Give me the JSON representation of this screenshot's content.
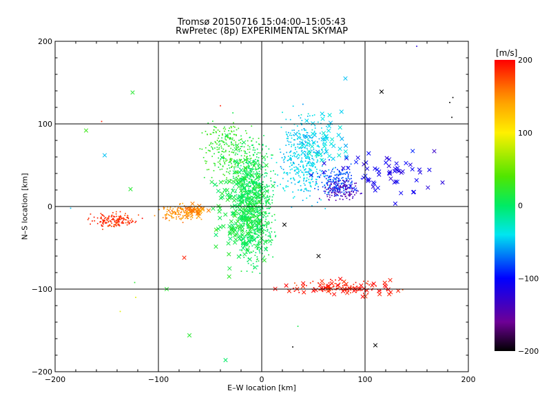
{
  "chart_data": {
    "type": "scatter",
    "title": "Tromsø 20150716 15:04:00–15:05:43",
    "subtitle": "RwPretec (8p) EXPERIMENTAL SKYMAP",
    "xlabel": "E–W location [km]",
    "ylabel": "N–S location [km]",
    "xlim": [
      -200,
      200
    ],
    "ylim": [
      -200,
      200
    ],
    "x_ticks": [
      "−200",
      "−100",
      "0",
      "100",
      "200"
    ],
    "y_ticks": [
      "−200",
      "−100",
      "0",
      "100",
      "200"
    ],
    "grid": true,
    "grid_values": [
      -100,
      0,
      100
    ],
    "colorbar": {
      "label": "[m/s]",
      "range": [
        -200,
        200
      ],
      "ticks": [
        "200",
        "100",
        "0",
        "−100",
        "−200"
      ],
      "tick_values": [
        200,
        100,
        0,
        -100,
        -200
      ],
      "colormap": "rainbow (black → purple → blue → cyan → green → yellow → orange → red)"
    },
    "markers": {
      "dots": "small points",
      "crosses": "× markers"
    },
    "clusters": [
      {
        "name": "central green column",
        "x_range": [
          -30,
          15
        ],
        "y_range": [
          -85,
          90
        ],
        "velocity": 5,
        "count": 950,
        "marker": "dot"
      },
      {
        "name": "north green spread",
        "x_range": [
          -65,
          0
        ],
        "y_range": [
          20,
          115
        ],
        "velocity": 25,
        "count": 260,
        "marker": "dot"
      },
      {
        "name": "north-east cyan spread",
        "x_range": [
          10,
          70
        ],
        "y_range": [
          -5,
          125
        ],
        "velocity": -45,
        "count": 420,
        "marker": "dot"
      },
      {
        "name": "east cyan-blue",
        "x_range": [
          50,
          95
        ],
        "y_range": [
          5,
          55
        ],
        "velocity": -80,
        "count": 180,
        "marker": "dot"
      },
      {
        "name": "east dark-blue band",
        "x_range": [
          55,
          100
        ],
        "y_range": [
          5,
          35
        ],
        "velocity": -140,
        "count": 120,
        "marker": "dot"
      },
      {
        "name": "west red band",
        "x_range": [
          -172,
          -115
        ],
        "y_range": [
          -30,
          -5
        ],
        "velocity": 185,
        "count": 160,
        "marker": "dot"
      },
      {
        "name": "west orange band",
        "x_range": [
          -105,
          -55
        ],
        "y_range": [
          -20,
          5
        ],
        "velocity": 150,
        "count": 120,
        "marker": "dot"
      },
      {
        "name": "south-east red band",
        "x_range": [
          10,
          145
        ],
        "y_range": [
          -110,
          -85
        ],
        "velocity": 190,
        "count": 70,
        "marker": "dot"
      },
      {
        "name": "green crosses",
        "x_range": [
          -50,
          15
        ],
        "y_range": [
          -95,
          95
        ],
        "velocity": 10,
        "count": 220,
        "marker": "cross"
      },
      {
        "name": "south-east red crosses",
        "x_range": [
          10,
          145
        ],
        "y_range": [
          -110,
          -85
        ],
        "velocity": 195,
        "count": 55,
        "marker": "cross"
      },
      {
        "name": "east blue crosses",
        "x_range": [
          50,
          180
        ],
        "y_range": [
          5,
          70
        ],
        "velocity": -110,
        "count": 60,
        "marker": "cross"
      },
      {
        "name": "west orange crosses",
        "x_range": [
          -80,
          -50
        ],
        "y_range": [
          -15,
          5
        ],
        "velocity": 155,
        "count": 30,
        "marker": "cross"
      },
      {
        "name": "north-east cyan crosses",
        "x_range": [
          20,
          90
        ],
        "y_range": [
          40,
          130
        ],
        "velocity": -40,
        "count": 50,
        "marker": "cross"
      }
    ],
    "outlier_crosses": [
      {
        "x": -125,
        "y": 138,
        "velocity": 20
      },
      {
        "x": -170,
        "y": 92,
        "velocity": 30
      },
      {
        "x": -152,
        "y": 62,
        "velocity": -50
      },
      {
        "x": -127,
        "y": 21,
        "velocity": 20
      },
      {
        "x": 116,
        "y": 139,
        "velocity": -200
      },
      {
        "x": 81,
        "y": 155,
        "velocity": -50
      },
      {
        "x": 175,
        "y": 29,
        "velocity": -120
      },
      {
        "x": 167,
        "y": 67,
        "velocity": -130
      },
      {
        "x": 110,
        "y": -168,
        "velocity": -200
      },
      {
        "x": -70,
        "y": -156,
        "velocity": 20
      },
      {
        "x": -35,
        "y": -186,
        "velocity": 0
      },
      {
        "x": -92,
        "y": -100,
        "velocity": 20
      },
      {
        "x": 55,
        "y": -60,
        "velocity": -200
      },
      {
        "x": 22,
        "y": -22,
        "velocity": -200
      },
      {
        "x": -75,
        "y": -62,
        "velocity": 190
      }
    ],
    "outlier_dots": [
      {
        "x": -155,
        "y": 103,
        "velocity": 190
      },
      {
        "x": -40,
        "y": 122,
        "velocity": 190
      },
      {
        "x": 150,
        "y": 194,
        "velocity": -120
      },
      {
        "x": 185,
        "y": 132,
        "velocity": -200
      },
      {
        "x": 182,
        "y": 126,
        "velocity": -200
      },
      {
        "x": 184,
        "y": 108,
        "velocity": -200
      },
      {
        "x": -185,
        "y": -2,
        "velocity": -50
      },
      {
        "x": -137,
        "y": -127,
        "velocity": 90
      },
      {
        "x": -122,
        "y": -110,
        "velocity": 90
      },
      {
        "x": 30,
        "y": -170,
        "velocity": -200
      },
      {
        "x": 35,
        "y": -145,
        "velocity": 10
      },
      {
        "x": -123,
        "y": -92,
        "velocity": 20
      }
    ]
  }
}
